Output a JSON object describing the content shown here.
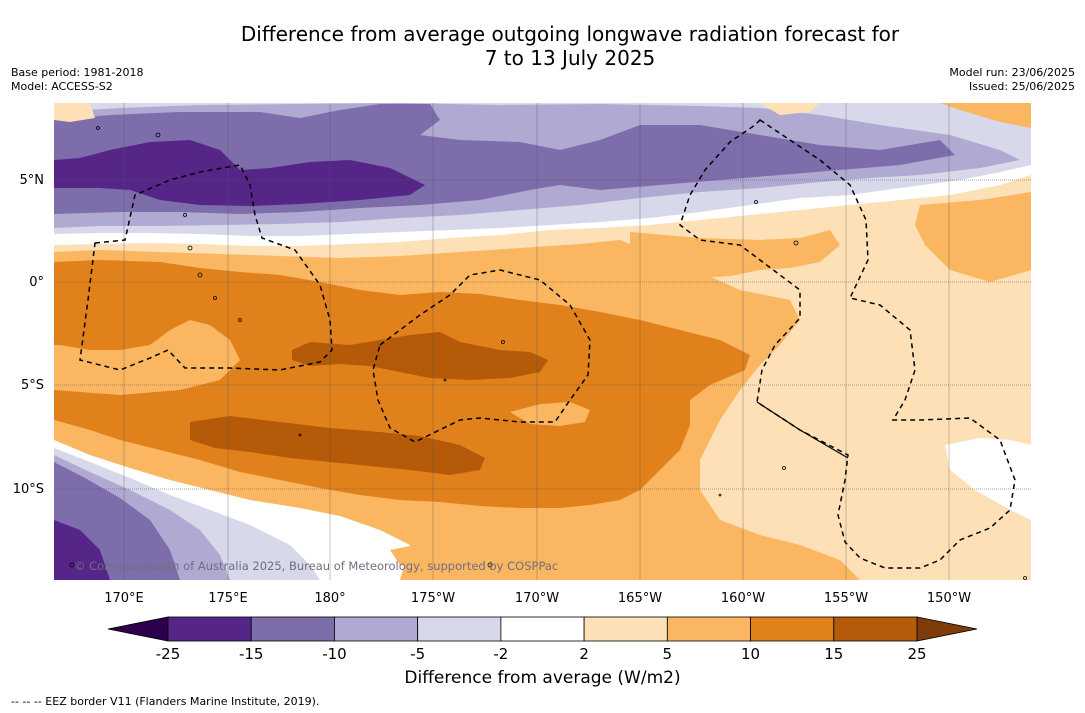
{
  "title": {
    "line1": "Difference from average outgoing longwave radiation forecast for",
    "line2": "7 to 13 July 2025"
  },
  "meta_left": {
    "base_period": "Base period: 1981-2018",
    "model": "Model: ACCESS-S2"
  },
  "meta_right": {
    "model_run": "Model run: 23/06/2025",
    "issued": "Issued: 25/06/2025"
  },
  "map": {
    "lat_labels": [
      "5°N",
      "0°",
      "5°S",
      "10°S"
    ],
    "lon_labels": [
      "170°E",
      "175°E",
      "180°",
      "175°W",
      "170°W",
      "165°W",
      "160°W",
      "155°W",
      "150°W"
    ],
    "copyright": "© Commonwealth of Australia 2025, Bureau of Meteorology, supported by COSPPac"
  },
  "colorbar": {
    "title": "Difference from average (W/m2)",
    "ticks": [
      "-25",
      "-15",
      "-10",
      "-5",
      "-2",
      "2",
      "5",
      "10",
      "15",
      "25"
    ],
    "colors": [
      "#552688",
      "#7d6dab",
      "#b0a9d2",
      "#d8d8eb",
      "#ffffff",
      "#fde0b6",
      "#fbb661",
      "#e1811b",
      "#b45a08"
    ],
    "extend_low": "#2d004b",
    "extend_high": "#7f3b08"
  },
  "footnote": "-- -- -- EEZ border V11 (Flanders Marine Institute, 2019)."
}
